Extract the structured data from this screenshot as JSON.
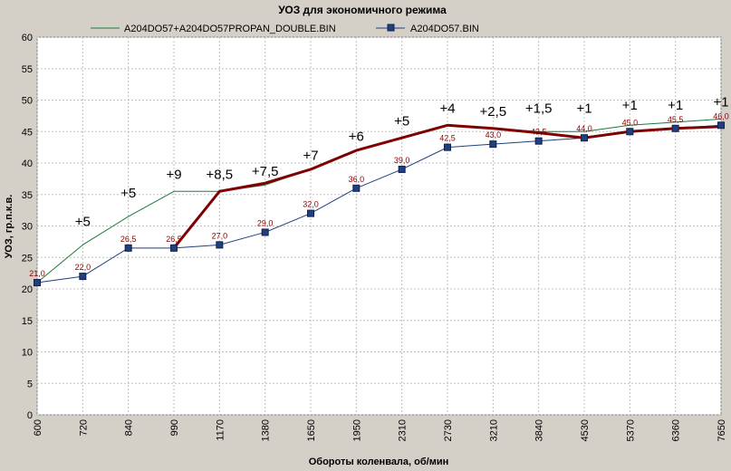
{
  "chart_data": {
    "type": "line",
    "title": "УОЗ для экономичного режима",
    "xlabel": "Обороты коленвала, об/мин",
    "ylabel": "УОЗ, гр.п.к.в.",
    "categories": [
      "600",
      "720",
      "840",
      "990",
      "1170",
      "1380",
      "1650",
      "1950",
      "2310",
      "2730",
      "3210",
      "3840",
      "4530",
      "5370",
      "6360",
      "7650"
    ],
    "ylim": [
      0,
      60
    ],
    "yticks": [
      0,
      5,
      10,
      15,
      20,
      25,
      30,
      35,
      40,
      45,
      50,
      55,
      60
    ],
    "grid": true,
    "legend_position": "top",
    "series": [
      {
        "name": "A204DO57+A204DO57PROPAN_DOUBLE.BIN",
        "color": "#1a7a3a",
        "values": [
          21,
          27,
          31.5,
          35.5,
          35.5,
          36.5,
          39,
          42,
          44,
          46,
          45.5,
          45,
          45,
          46,
          46.5,
          47
        ]
      },
      {
        "name": "A204DO57.BIN",
        "color": "#1f3f7f",
        "marker": "square",
        "values": [
          21,
          22,
          26.5,
          26.5,
          27,
          29,
          32,
          36,
          39,
          42.5,
          43,
          43.5,
          44,
          45,
          45.5,
          46
        ],
        "data_labels": [
          "21,0",
          "22,0",
          "26,5",
          "26,5",
          "27,0",
          "29,0",
          "32,0",
          "36,0",
          "39,0",
          "42,5",
          "43,0",
          "43,5",
          "44,0",
          "45,0",
          "45,5",
          "46,0"
        ]
      },
      {
        "name": "",
        "color": "#7f0000",
        "values": [
          null,
          null,
          null,
          26.5,
          35.5,
          36.8,
          39,
          42,
          44,
          46,
          45.5,
          44.8,
          44,
          45,
          45.5,
          45.8
        ]
      }
    ],
    "annotations": [
      {
        "text": "+5",
        "x_index": 1,
        "y": 30
      },
      {
        "text": "+5",
        "x_index": 2,
        "y": 34.5
      },
      {
        "text": "+9",
        "x_index": 3,
        "y": 37.5
      },
      {
        "text": "+8,5",
        "x_index": 4,
        "y": 37.5
      },
      {
        "text": "+7,5",
        "x_index": 5,
        "y": 38
      },
      {
        "text": "+7",
        "x_index": 6,
        "y": 40.5
      },
      {
        "text": "+6",
        "x_index": 7,
        "y": 43.5
      },
      {
        "text": "+5",
        "x_index": 8,
        "y": 46
      },
      {
        "text": "+4",
        "x_index": 9,
        "y": 48
      },
      {
        "text": "+2,5",
        "x_index": 10,
        "y": 47.5
      },
      {
        "text": "+1,5",
        "x_index": 11,
        "y": 48
      },
      {
        "text": "+1",
        "x_index": 12,
        "y": 48
      },
      {
        "text": "+1",
        "x_index": 13,
        "y": 48.5
      },
      {
        "text": "+1",
        "x_index": 14,
        "y": 48.5
      },
      {
        "text": "+1",
        "x_index": 15,
        "y": 49
      }
    ]
  }
}
